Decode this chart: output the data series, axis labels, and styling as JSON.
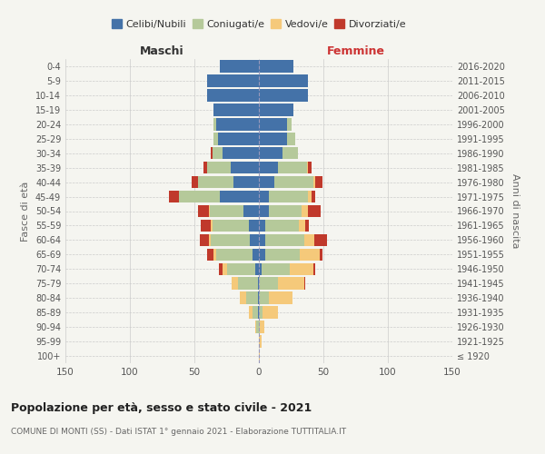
{
  "age_groups": [
    "100+",
    "95-99",
    "90-94",
    "85-89",
    "80-84",
    "75-79",
    "70-74",
    "65-69",
    "60-64",
    "55-59",
    "50-54",
    "45-49",
    "40-44",
    "35-39",
    "30-34",
    "25-29",
    "20-24",
    "15-19",
    "10-14",
    "5-9",
    "0-4"
  ],
  "birth_years": [
    "≤ 1920",
    "1921-1925",
    "1926-1930",
    "1931-1935",
    "1936-1940",
    "1941-1945",
    "1946-1950",
    "1951-1955",
    "1956-1960",
    "1961-1965",
    "1966-1970",
    "1971-1975",
    "1976-1980",
    "1981-1985",
    "1986-1990",
    "1991-1995",
    "1996-2000",
    "2001-2005",
    "2006-2010",
    "2011-2015",
    "2016-2020"
  ],
  "male_celibi": [
    0,
    0,
    0,
    1,
    1,
    1,
    3,
    5,
    7,
    8,
    12,
    30,
    20,
    22,
    28,
    32,
    33,
    35,
    40,
    40,
    30
  ],
  "male_coniugati": [
    0,
    0,
    2,
    4,
    9,
    15,
    22,
    28,
    30,
    28,
    26,
    32,
    27,
    18,
    8,
    3,
    2,
    0,
    0,
    0,
    0
  ],
  "male_vedovi": [
    0,
    0,
    1,
    3,
    5,
    5,
    3,
    2,
    2,
    1,
    1,
    0,
    0,
    0,
    0,
    0,
    0,
    0,
    0,
    0,
    0
  ],
  "male_divorziati": [
    0,
    0,
    0,
    0,
    0,
    0,
    3,
    5,
    7,
    8,
    8,
    8,
    5,
    3,
    1,
    0,
    0,
    0,
    0,
    0,
    0
  ],
  "female_nubili": [
    0,
    0,
    0,
    0,
    0,
    0,
    2,
    5,
    5,
    5,
    8,
    8,
    12,
    15,
    18,
    22,
    22,
    27,
    38,
    38,
    27
  ],
  "female_coniugate": [
    0,
    0,
    1,
    3,
    8,
    15,
    22,
    27,
    30,
    26,
    25,
    30,
    30,
    22,
    12,
    6,
    3,
    0,
    0,
    0,
    0
  ],
  "female_vedove": [
    1,
    2,
    3,
    12,
    18,
    20,
    18,
    15,
    8,
    5,
    5,
    3,
    2,
    1,
    0,
    0,
    0,
    0,
    0,
    0,
    0
  ],
  "female_divorziate": [
    0,
    0,
    0,
    0,
    0,
    1,
    2,
    2,
    10,
    3,
    10,
    3,
    5,
    3,
    0,
    0,
    0,
    0,
    0,
    0,
    0
  ],
  "colors": {
    "celibi": "#4472a8",
    "coniugati": "#b5c99a",
    "vedovi": "#f5c97a",
    "divorziati": "#c0392b"
  },
  "xlim": 150,
  "title": "Popolazione per età, sesso e stato civile - 2021",
  "subtitle": "COMUNE DI MONTI (SS) - Dati ISTAT 1° gennaio 2021 - Elaborazione TUTTITALIA.IT",
  "xlabel_left": "Maschi",
  "xlabel_right": "Femmine",
  "ylabel_left": "Fasce di età",
  "ylabel_right": "Anni di nascita",
  "bg_color": "#f5f5f0",
  "grid_color": "#cccccc",
  "legend_labels": [
    "Celibi/Nubili",
    "Coniugati/e",
    "Vedovi/e",
    "Divorziati/e"
  ]
}
